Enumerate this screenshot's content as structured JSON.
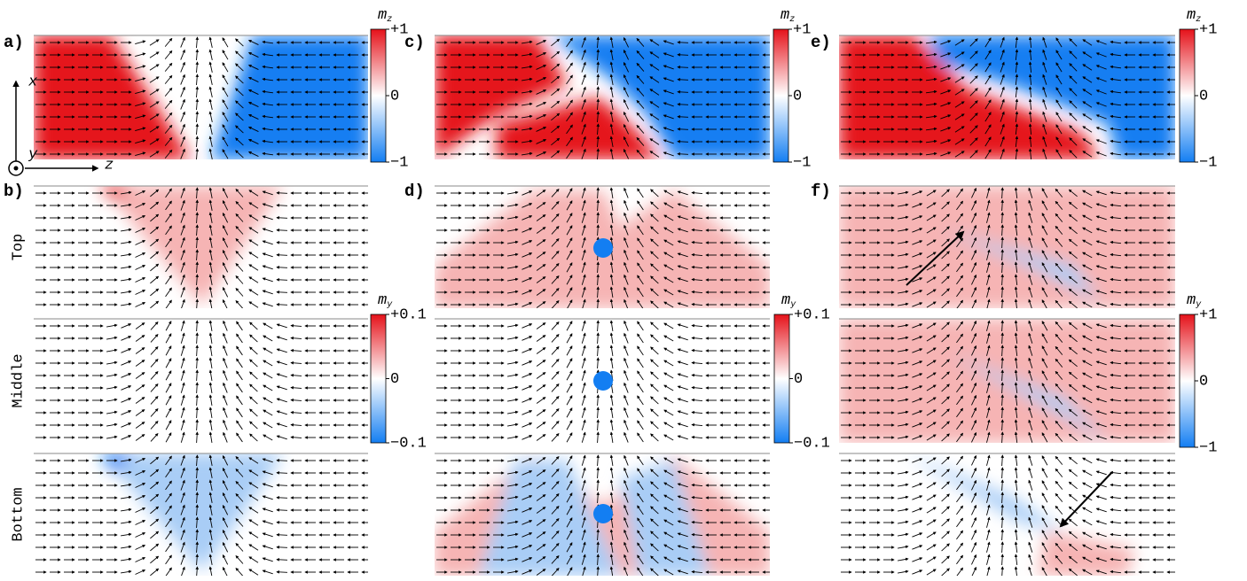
{
  "panels": [
    {
      "label": "a)"
    },
    {
      "label": "b)"
    },
    {
      "label": "c)"
    },
    {
      "label": "d)"
    },
    {
      "label": "e)"
    },
    {
      "label": "f)"
    }
  ],
  "axes": {
    "x": "x",
    "y": "y",
    "z": "z"
  },
  "rows": [
    "Top",
    "Middle",
    "Bottom"
  ],
  "colorbars": [
    {
      "symbol": "m",
      "component": "z",
      "ticks": [
        "+1",
        "0",
        "−1"
      ]
    },
    {
      "symbol": "m",
      "component": "z",
      "ticks": [
        "+1",
        "0",
        "−1"
      ]
    },
    {
      "symbol": "m",
      "component": "z",
      "ticks": [
        "+1",
        "0",
        "−1"
      ]
    },
    {
      "symbol": "m",
      "component": "y",
      "ticks": [
        "+0.1",
        "0",
        "−0.1"
      ]
    },
    {
      "symbol": "m",
      "component": "y",
      "ticks": [
        "+0.1",
        "0",
        "−0.1"
      ]
    },
    {
      "symbol": "m",
      "component": "y",
      "ticks": [
        "+1",
        "0",
        "−1"
      ]
    }
  ]
}
